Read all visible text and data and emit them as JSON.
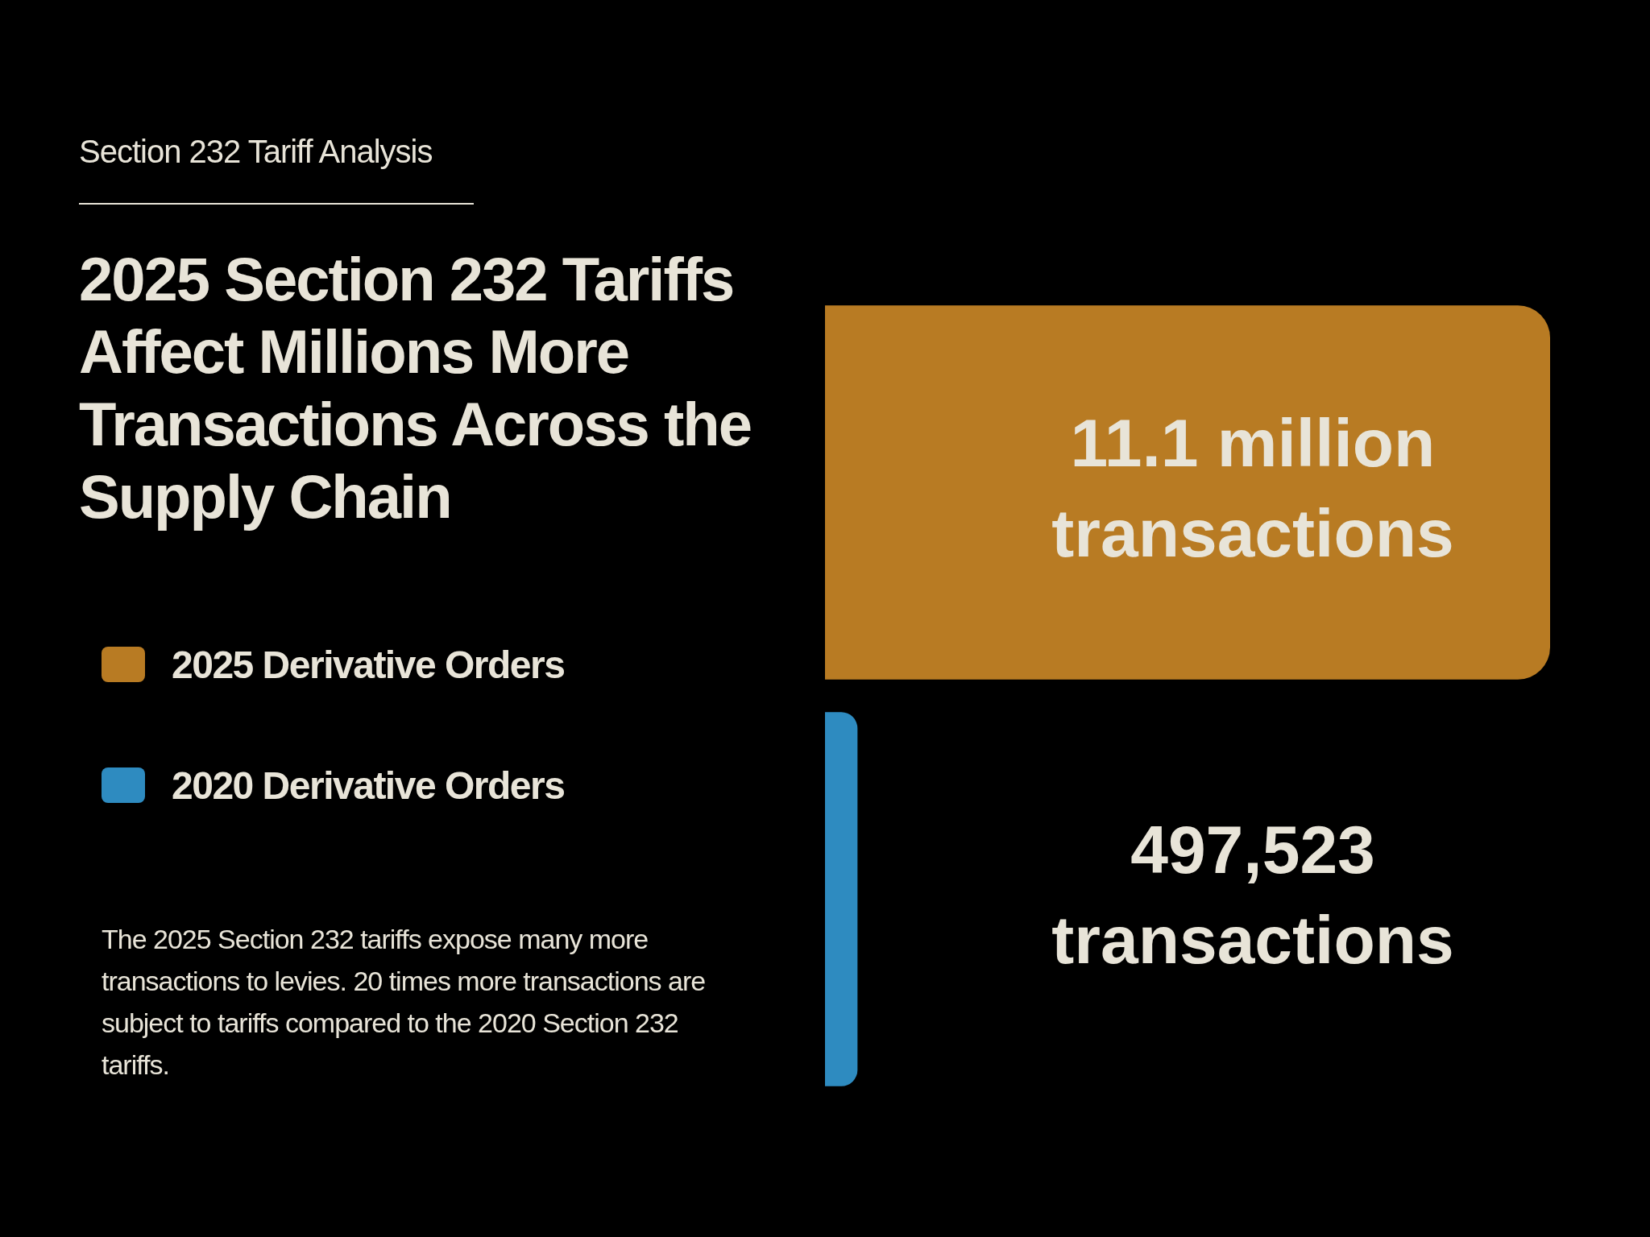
{
  "chart_data": {
    "type": "bar",
    "orientation": "horizontal",
    "stacked": true,
    "subtitle": "Section 232 Tariff Analysis",
    "title": "2025 Section 232 Tariffs Affect Millions More Transactions Across the Supply Chain",
    "categories": [
      null,
      null
    ],
    "series": [
      {
        "name": "2025 Derivative Orders",
        "color": "#b87b23",
        "values": [
          11100000,
          0
        ],
        "value_labels": [
          "11.1 million transactions",
          null
        ]
      },
      {
        "name": "2020 Derivative Orders",
        "color": "#2e8bc0",
        "values": [
          0,
          497523
        ],
        "value_labels": [
          null,
          "497,523 transactions"
        ]
      }
    ],
    "legend": "left",
    "annotations": [
      "The 2025 Section 232 tariffs expose many more transactions to levies. 20 times more transactions are subject to tariffs compared to the 2020 Section 232 tariffs."
    ]
  }
}
